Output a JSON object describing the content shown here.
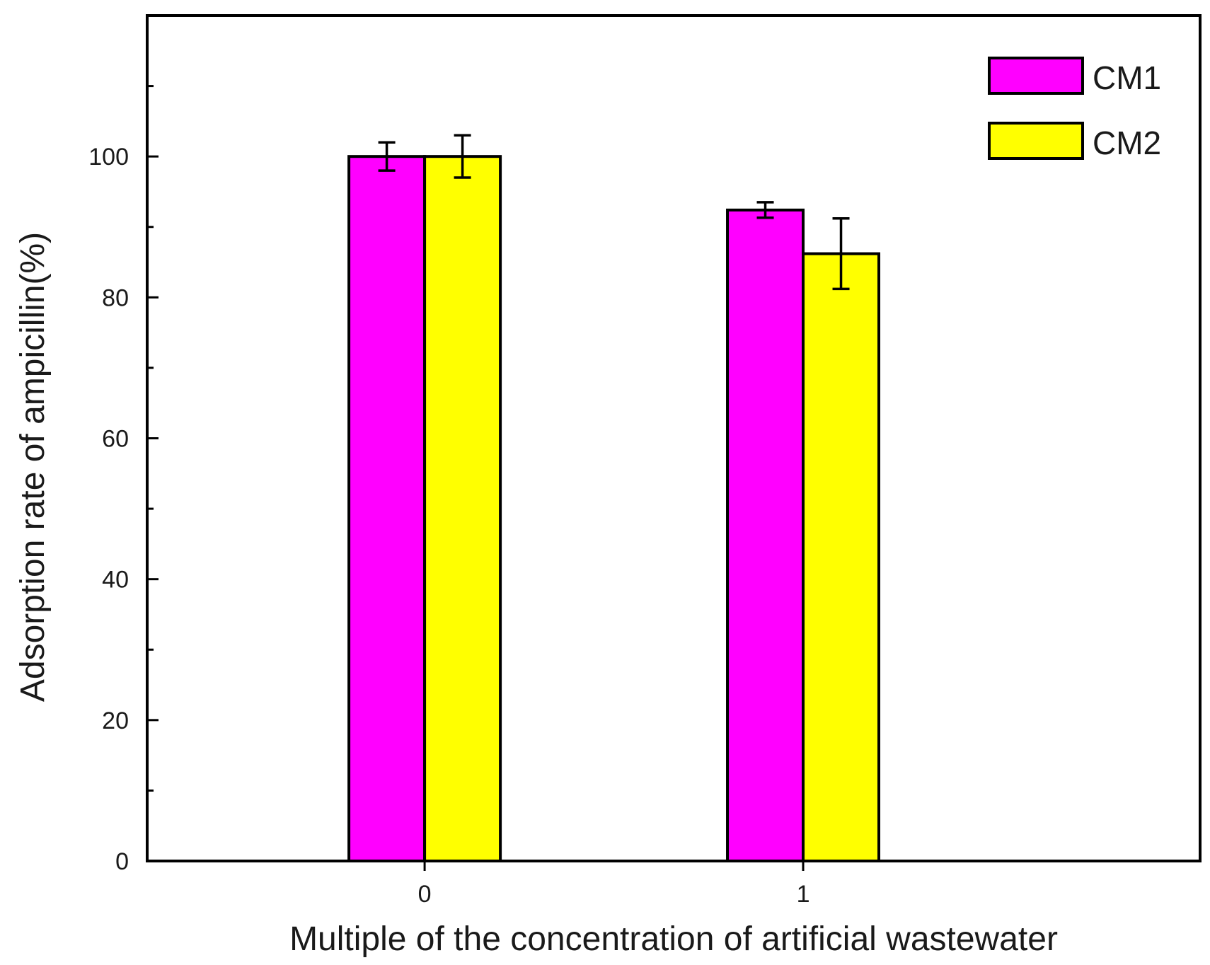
{
  "chart_data": {
    "type": "bar",
    "categories": [
      "0",
      "1"
    ],
    "series": [
      {
        "name": "CM1",
        "color": "#ff00ff",
        "values": [
          100.0,
          92.4
        ],
        "errors": [
          2.0,
          1.1
        ]
      },
      {
        "name": "CM2",
        "color": "#ffff00",
        "values": [
          100.0,
          86.2
        ],
        "errors": [
          3.0,
          5.0
        ]
      }
    ],
    "xlabel": "Multiple of the concentration of artificial wastewater",
    "ylabel": "Adsorption rate of ampicillin(%)",
    "ylim": [
      0,
      120
    ],
    "yticks_major": [
      0,
      20,
      40,
      60,
      80,
      100
    ],
    "yticks_minor": [
      10,
      30,
      50,
      70,
      90,
      110
    ],
    "grid": false,
    "legend_position": "top-right"
  }
}
